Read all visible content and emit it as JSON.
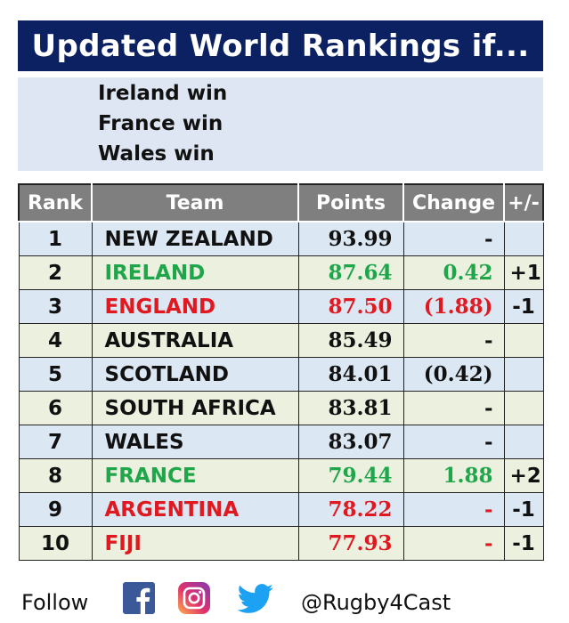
{
  "title": "Updated World Rankings if...",
  "scenarios": [
    "Ireland win",
    "France win",
    "Wales win"
  ],
  "table": {
    "headers": [
      "Rank",
      "Team",
      "Points",
      "Change",
      "+/-"
    ],
    "rows": [
      {
        "rank": "1",
        "team": "NEW ZEALAND",
        "points": "93.99",
        "change": "-",
        "delta": "",
        "color": "dark"
      },
      {
        "rank": "2",
        "team": "IRELAND",
        "points": "87.64",
        "change": "0.42",
        "delta": "+1",
        "color": "green"
      },
      {
        "rank": "3",
        "team": "ENGLAND",
        "points": "87.50",
        "change": "(1.88)",
        "delta": "-1",
        "color": "red"
      },
      {
        "rank": "4",
        "team": "AUSTRALIA",
        "points": "85.49",
        "change": "-",
        "delta": "",
        "color": "dark"
      },
      {
        "rank": "5",
        "team": "SCOTLAND",
        "points": "84.01",
        "change": "(0.42)",
        "delta": "",
        "color": "dark"
      },
      {
        "rank": "6",
        "team": "SOUTH AFRICA",
        "points": "83.81",
        "change": "-",
        "delta": "",
        "color": "dark"
      },
      {
        "rank": "7",
        "team": "WALES",
        "points": "83.07",
        "change": "-",
        "delta": "",
        "color": "dark"
      },
      {
        "rank": "8",
        "team": "FRANCE",
        "points": "79.44",
        "change": "1.88",
        "delta": "+2",
        "color": "green"
      },
      {
        "rank": "9",
        "team": "ARGENTINA",
        "points": "78.22",
        "change": "-",
        "delta": "-1",
        "color": "red"
      },
      {
        "rank": "10",
        "team": "FIJI",
        "points": "77.93",
        "change": "-",
        "delta": "-1",
        "color": "red"
      }
    ]
  },
  "footer": {
    "follow_label": "Follow",
    "icons": [
      "facebook-icon",
      "instagram-icon",
      "twitter-icon"
    ],
    "handle": "@Rugby4Cast"
  },
  "colors": {
    "title_bg": "#0b2162",
    "header_bg": "#7f7f7f",
    "row_blue": "#dbe7f3",
    "row_green": "#ebf1de",
    "green": "#1fa64a",
    "red": "#e0181f",
    "facebook": "#3b5998",
    "twitter": "#1da1f2"
  }
}
